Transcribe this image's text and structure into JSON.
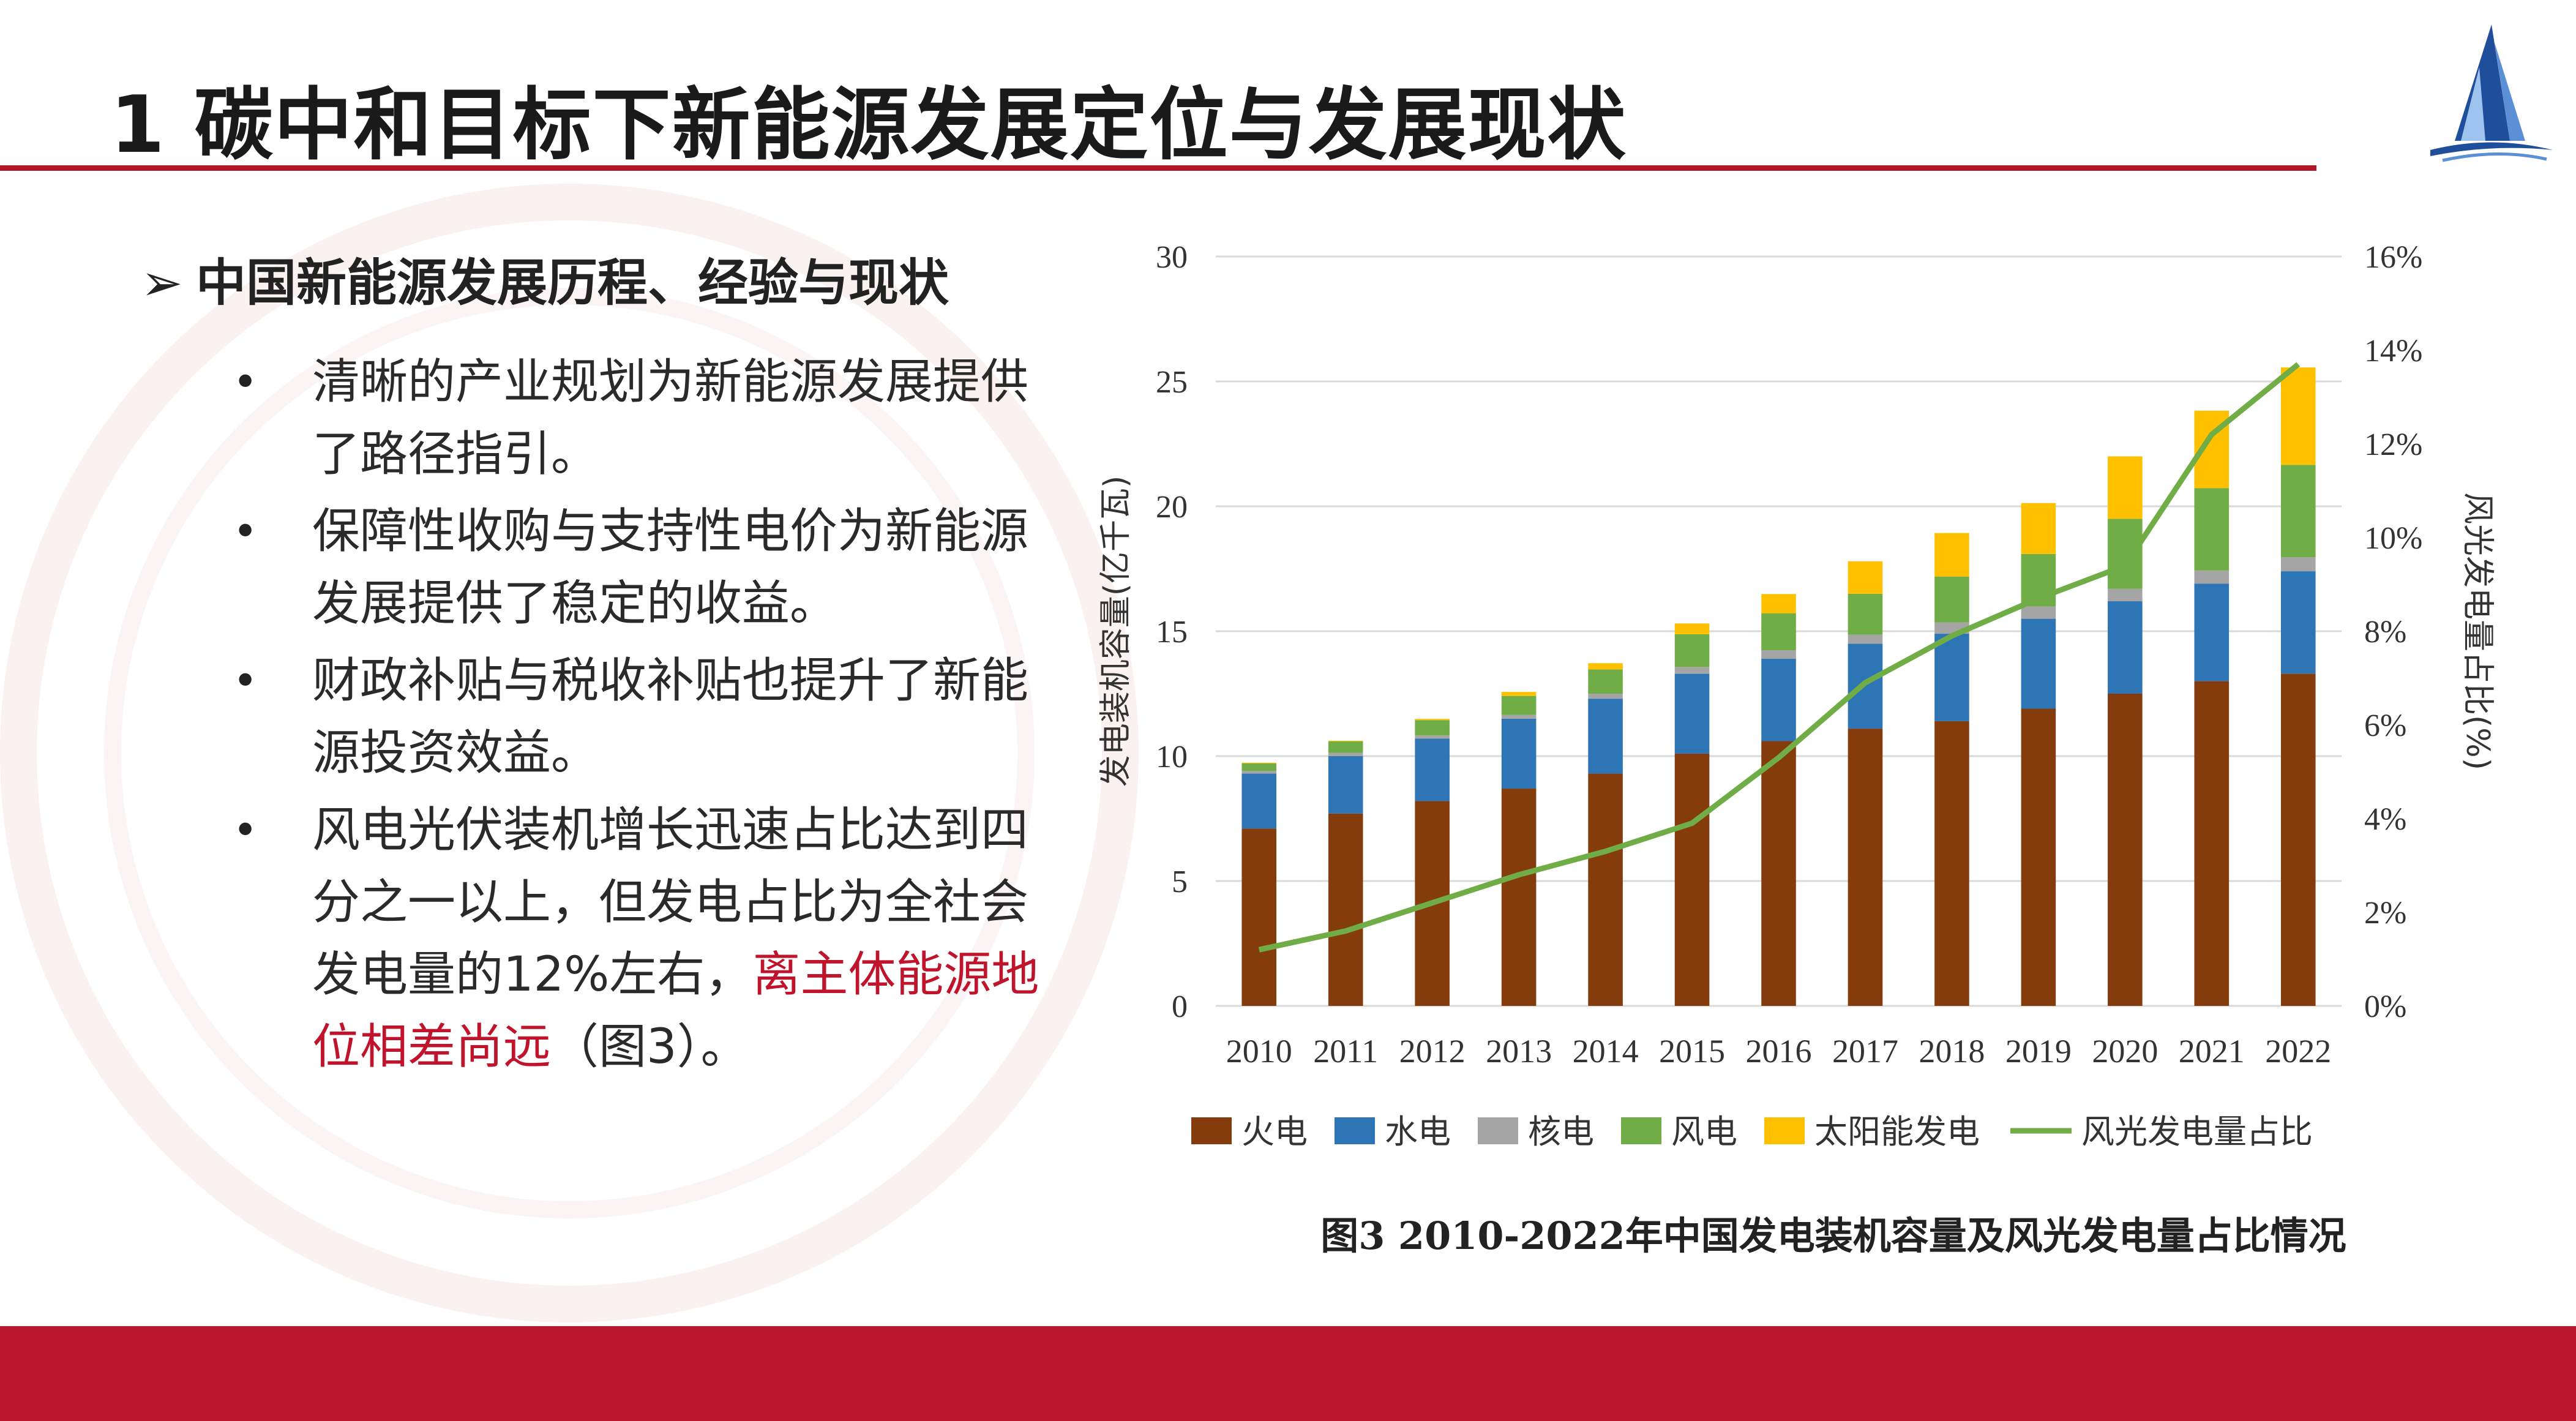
{
  "slide": {
    "title": "1 碳中和目标下新能源发展定位与发展现状",
    "heading": "中国新能源发展历程、经验与现状",
    "heading_marker": "➢",
    "bullet_marker": "•",
    "bullets": [
      {
        "lines": [
          "清晰的产业规划为新能源发展提供",
          "了路径指引。"
        ]
      },
      {
        "lines": [
          "保障性收购与支持性电价为新能源",
          "发展提供了稳定的收益。"
        ]
      },
      {
        "lines": [
          "财政补贴与税收补贴也提升了新能",
          "源投资效益。"
        ]
      },
      {
        "lines": [
          "风电光伏装机增长迅速占比达到四",
          "分之一以上，但发电占比为全社会"
        ],
        "line3_normal": "发电量的12%左右，",
        "line3_red": "离主体能源地",
        "line4_red": "位相差尚远",
        "line4_normal": "（图3）。"
      }
    ],
    "accent_color": "#b8172c",
    "highlight_color": "#c0142c",
    "caption": "图3 2010-2022年中国发电装机容量及风光发电量占比情况"
  },
  "chart_data": {
    "type": "bar",
    "stacked": true,
    "categories": [
      "2010",
      "2011",
      "2012",
      "2013",
      "2014",
      "2015",
      "2016",
      "2017",
      "2018",
      "2019",
      "2020",
      "2021",
      "2022"
    ],
    "ylabel": "发电装机容量(亿千瓦)",
    "y2label": "风光发电量占比(%)",
    "ylim": [
      0,
      30
    ],
    "yticks": [
      "0",
      "5",
      "10",
      "15",
      "20",
      "25",
      "30"
    ],
    "y2lim": [
      0,
      16
    ],
    "y2ticks": [
      "0%",
      "2%",
      "4%",
      "6%",
      "8%",
      "10%",
      "12%",
      "14%",
      "16%"
    ],
    "grid": true,
    "legend_position": "bottom",
    "series": [
      {
        "name": "火电",
        "color": "#843c0c",
        "values": [
          7.1,
          7.7,
          8.2,
          8.7,
          9.3,
          10.1,
          10.6,
          11.1,
          11.4,
          11.9,
          12.5,
          13.0,
          13.3
        ]
      },
      {
        "name": "水电",
        "color": "#2e75b6",
        "values": [
          2.2,
          2.3,
          2.5,
          2.8,
          3.0,
          3.2,
          3.3,
          3.4,
          3.5,
          3.6,
          3.7,
          3.9,
          4.1
        ]
      },
      {
        "name": "核电",
        "color": "#a5a5a5",
        "values": [
          0.11,
          0.13,
          0.13,
          0.15,
          0.2,
          0.27,
          0.34,
          0.36,
          0.45,
          0.49,
          0.5,
          0.53,
          0.56
        ]
      },
      {
        "name": "风电",
        "color": "#70ad47",
        "values": [
          0.3,
          0.46,
          0.61,
          0.76,
          0.97,
          1.31,
          1.48,
          1.64,
          1.84,
          2.1,
          2.8,
          3.3,
          3.7
        ]
      },
      {
        "name": "太阳能发电",
        "color": "#ffc000",
        "values": [
          0.03,
          0.03,
          0.05,
          0.16,
          0.25,
          0.43,
          0.77,
          1.3,
          1.74,
          2.04,
          2.5,
          3.1,
          3.9
        ]
      }
    ],
    "line_series": {
      "name": "风光发电量占比",
      "color": "#70ad47",
      "axis": "right",
      "values": [
        1.2,
        1.6,
        2.2,
        2.8,
        3.3,
        3.9,
        5.3,
        6.9,
        7.9,
        8.7,
        9.4,
        12.2,
        13.7
      ]
    }
  }
}
